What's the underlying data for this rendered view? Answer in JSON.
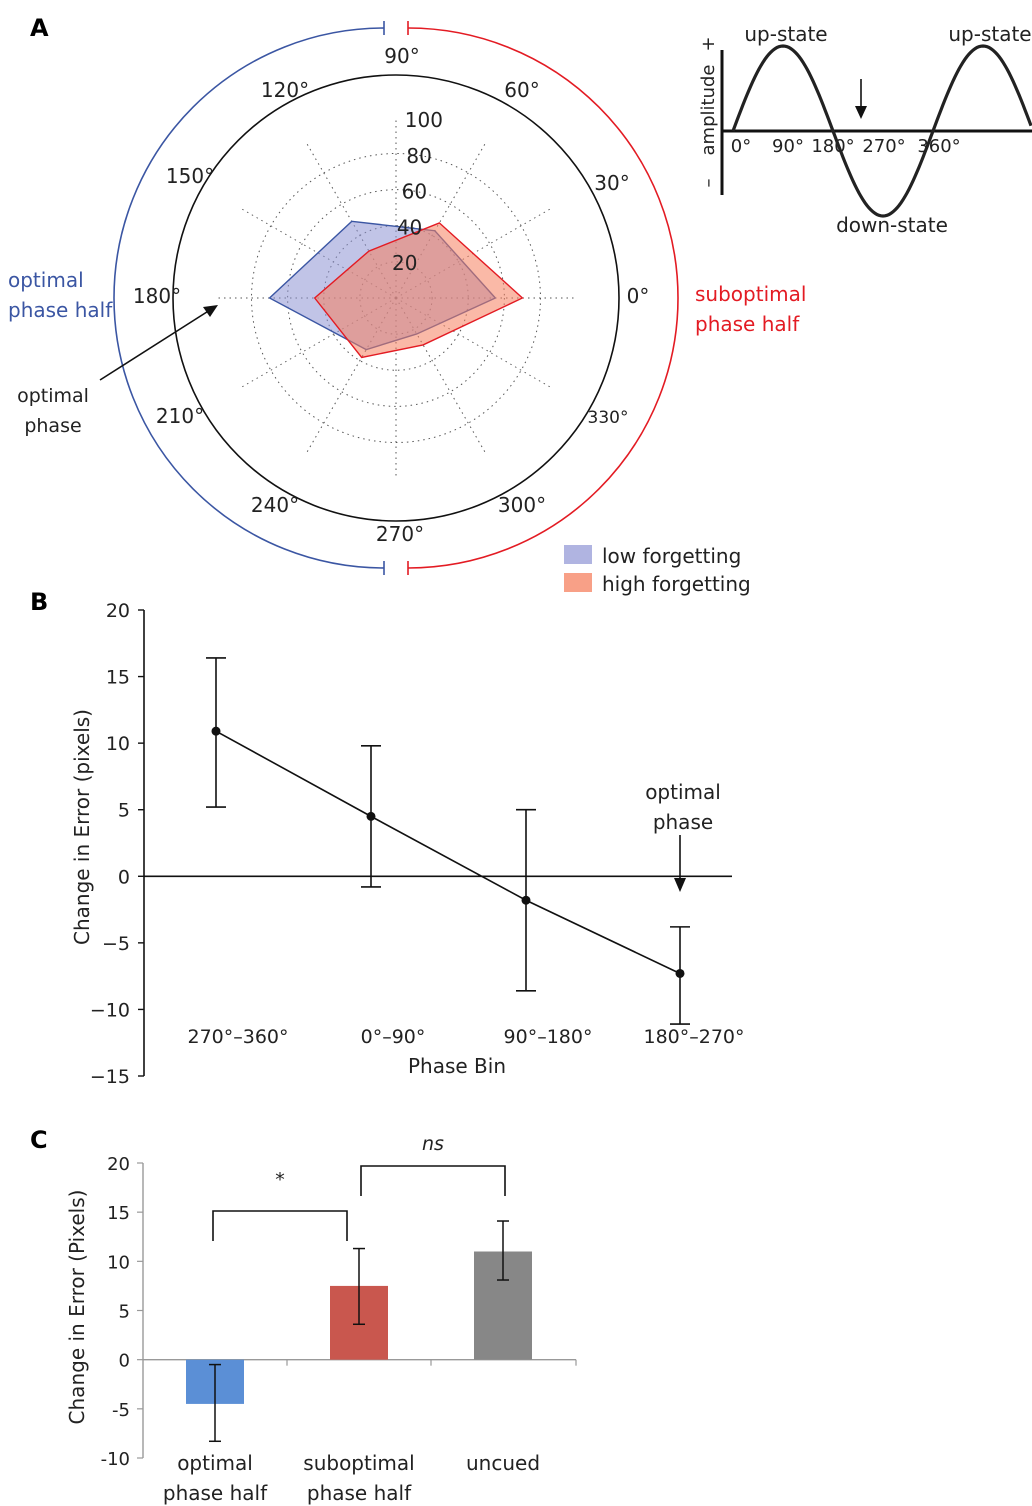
{
  "panels": {
    "a": "A",
    "b": "B",
    "c": "C"
  },
  "colors": {
    "blue": "#3b56a3",
    "red": "#e31b23",
    "low_fill": "#8e94d4",
    "high_fill": "#f5805f",
    "bar_blue": "#5b8fd6",
    "bar_red": "#c9574e",
    "bar_gray": "#878787"
  },
  "chart_data": [
    {
      "id": "A",
      "type": "radar",
      "angle_labels": [
        "0°",
        "30°",
        "60°",
        "90°",
        "120°",
        "150°",
        "180°",
        "210°",
        "240°",
        "270°",
        "300°",
        "330°"
      ],
      "radial_ticks": [
        20,
        40,
        60,
        80,
        100
      ],
      "rlim": [
        0,
        100
      ],
      "grid": "dotted",
      "legend": [
        "low forgetting",
        "high forgetting"
      ],
      "legend_position": "bottom-right",
      "series": [
        {
          "name": "low forgetting",
          "angles": [
            0,
            60,
            120,
            180,
            240,
            300
          ],
          "values": [
            55,
            43,
            49,
            70,
            33,
            23
          ]
        },
        {
          "name": "high forgetting",
          "angles": [
            0,
            60,
            120,
            180,
            240,
            300
          ],
          "values": [
            70,
            48,
            30,
            45,
            38,
            30
          ]
        }
      ],
      "side_labels": {
        "left": [
          "optimal",
          "phase half"
        ],
        "right": [
          "suboptimal",
          "phase half"
        ]
      },
      "annotation": [
        "optimal",
        "phase"
      ],
      "inset": {
        "type": "line",
        "ylabel": "amplitude",
        "y_plus": "+",
        "y_minus": "–",
        "x_ticks": [
          "0°",
          "90°",
          "180°",
          "270°",
          "360°"
        ],
        "annotations": [
          "up-state",
          "up-state",
          "down-state"
        ]
      }
    },
    {
      "id": "B",
      "type": "line",
      "categories": [
        "270°–360°",
        "0°–90°",
        "90°–180°",
        "180°–270°"
      ],
      "values": [
        10.9,
        4.5,
        -1.8,
        -7.3
      ],
      "error_upper": [
        16.4,
        9.8,
        5.0,
        -3.8
      ],
      "error_lower": [
        5.2,
        -0.8,
        -8.6,
        -11.1
      ],
      "xlabel": "Phase Bin",
      "ylabel": "Change in Error (pixels)",
      "ylim": [
        -15,
        20
      ],
      "yticks": [
        20,
        15,
        10,
        5,
        0,
        -5,
        -10,
        -15
      ],
      "annotation": [
        "optimal",
        "phase"
      ]
    },
    {
      "id": "C",
      "type": "bar",
      "categories": [
        [
          "optimal",
          "phase half"
        ],
        [
          "suboptimal",
          "phase half"
        ],
        [
          "uncued"
        ]
      ],
      "values": [
        -4.5,
        7.5,
        11.0
      ],
      "error_upper": [
        -0.5,
        11.3,
        14.1
      ],
      "error_lower": [
        -8.3,
        3.6,
        8.1
      ],
      "ylabel": "Change in Error (Pixels)",
      "ylim": [
        -10,
        20
      ],
      "yticks": [
        20,
        15,
        10,
        5,
        0,
        -5,
        -10
      ],
      "significance": [
        {
          "from": 0,
          "to": 1,
          "label": "*"
        },
        {
          "from": 1,
          "to": 2,
          "label": "ns"
        }
      ]
    }
  ]
}
